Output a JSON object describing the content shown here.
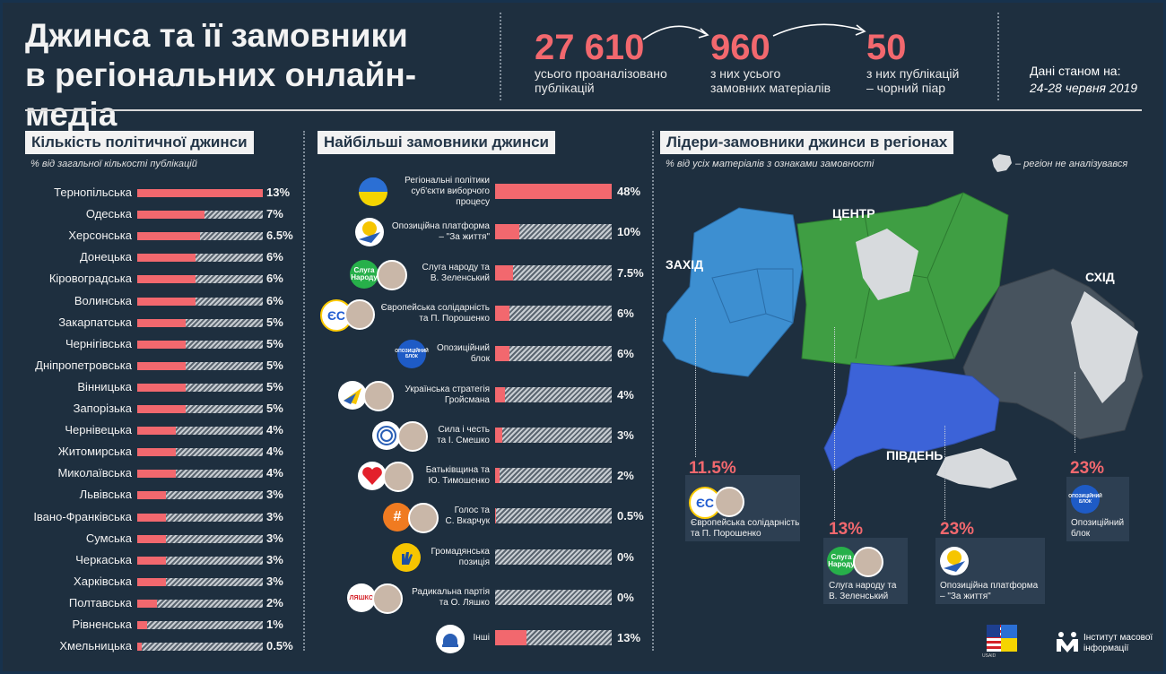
{
  "header": {
    "title_line1": "Джинса та її замовники",
    "title_line2": "в регіональних онлайн-медіа",
    "stat1_value": "27 610",
    "stat1_line1": "усього проаналізовано",
    "stat1_line2": "публікацій",
    "stat2_value": "960",
    "stat2_line1": "з них усього",
    "stat2_line2": "замовних матеріалів",
    "stat3_value": "50",
    "stat3_line1": "з них публікацій",
    "stat3_line2": "– чорний піар",
    "date_line1": "Дані станом на:",
    "date_line2": "24-28 червня 2019"
  },
  "panel1": {
    "title": "Кількість політичної джинси",
    "subtitle": "% від загальної кількості публікацій"
  },
  "panel2": {
    "title": "Найбільші замовники джинси"
  },
  "panel3": {
    "title": "Лідери-замовники джинси в регіонах",
    "subtitle": "% від усіх матеріалів з ознаками замовності",
    "legend_text": "– регіон не аналізувався",
    "zone_west": "ЗАХІД",
    "zone_center": "ЦЕНТР",
    "zone_east": "СХІД",
    "zone_south": "ПІВДЕНЬ",
    "cards": [
      {
        "pct": "11.5%",
        "line1": "Європейська солідарність",
        "line2": "та П. Порошенко"
      },
      {
        "pct": "13%",
        "line1": "Слуга народу та",
        "line2": "В. Зеленський"
      },
      {
        "pct": "23%",
        "line1": "Опозиційна платформа",
        "line2": "– \"За життя\""
      },
      {
        "pct": "23%",
        "line1": "Опозиційний",
        "line2": "блок"
      }
    ],
    "colors": {
      "west": "#3d8fd1",
      "center": "#3f9e43",
      "east": "#47535e",
      "south": "#3c63d8",
      "not_analyzed": "#d7dadd"
    }
  },
  "logos": {
    "esp": "ЄС",
    "sluha_line1": "Слуга",
    "sluha_line2": "Народу",
    "ob": "ОПОЗИЦІЙНИЙ БЛОК",
    "lyashko": "ЛЯШКО",
    "footer_right_line1": "Інститут масової",
    "footer_right_line2": "інформації",
    "footer_left": "USAID"
  },
  "chart_data": [
    {
      "type": "bar",
      "title": "Кількість політичної джинси",
      "subtitle": "% від загальної кількості публікацій",
      "xlim": [
        0,
        13
      ],
      "categories": [
        "Тернопільська",
        "Одеська",
        "Херсонська",
        "Донецька",
        "Кіровоградська",
        "Волинська",
        "Закарпатська",
        "Чернігівська",
        "Дніпропетровська",
        "Вінницька",
        "Запорізька",
        "Чернівецька",
        "Житомирська",
        "Миколаївська",
        "Львівська",
        "Івано-Франківська",
        "Сумська",
        "Черкаська",
        "Харківська",
        "Полтавська",
        "Рівненська",
        "Хмельницька"
      ],
      "values": [
        13,
        7,
        6.5,
        6,
        6,
        6,
        5,
        5,
        5,
        5,
        5,
        4,
        4,
        4,
        3,
        3,
        3,
        3,
        3,
        2,
        1,
        0.5
      ],
      "value_labels": [
        "13%",
        "7%",
        "6.5%",
        "6%",
        "6%",
        "6%",
        "5%",
        "5%",
        "5%",
        "5%",
        "5%",
        "4%",
        "4%",
        "4%",
        "3%",
        "3%",
        "3%",
        "3%",
        "3%",
        "2%",
        "1%",
        "0.5%"
      ]
    },
    {
      "type": "bar",
      "title": "Найбільші замовники джинси",
      "xlim": [
        0,
        48
      ],
      "categories": [
        "Регіональні політики суб'єкти виборчого процесу",
        "Опозиційна платформа – \"За життя\"",
        "Слуга народу та В. Зеленський",
        "Європейська солідарність та П. Порошенко",
        "Опозиційний блок",
        "Українська стратегія Гройсмана",
        "Сила і честь та І. Смешко",
        "Батьківщина та Ю. Тимошенко",
        "Голос та С. Вкарчук",
        "Громадянська позиція",
        "Радикальна партія та О. Ляшко",
        "Інші"
      ],
      "label_lines": [
        [
          "Регіональні політики",
          "суб'єкти виборчого",
          "процесу"
        ],
        [
          "Опозиційна платформа",
          "– \"За життя\""
        ],
        [
          "Слуга народу та",
          "В. Зеленський"
        ],
        [
          "Європейська солідарність",
          "та П. Порошенко"
        ],
        [
          "Опозиційний",
          "блок"
        ],
        [
          "Українська стратегія",
          "Гройсмана"
        ],
        [
          "Сила і честь",
          "та І. Смешко"
        ],
        [
          "Батьківщина та",
          "Ю. Тимошенко"
        ],
        [
          "Голос та",
          "С. Вкарчук"
        ],
        [
          "Громадянська",
          "позиція"
        ],
        [
          "Радикальна партія",
          "та О. Ляшко"
        ],
        [
          "Інші"
        ]
      ],
      "values": [
        48,
        10,
        7.5,
        6,
        6,
        4,
        3,
        2,
        0.5,
        0,
        0,
        13
      ],
      "value_labels": [
        "48%",
        "10%",
        "7.5%",
        "6%",
        "6%",
        "4%",
        "3%",
        "2%",
        "0.5%",
        "0%",
        "0%",
        "13%"
      ]
    }
  ]
}
